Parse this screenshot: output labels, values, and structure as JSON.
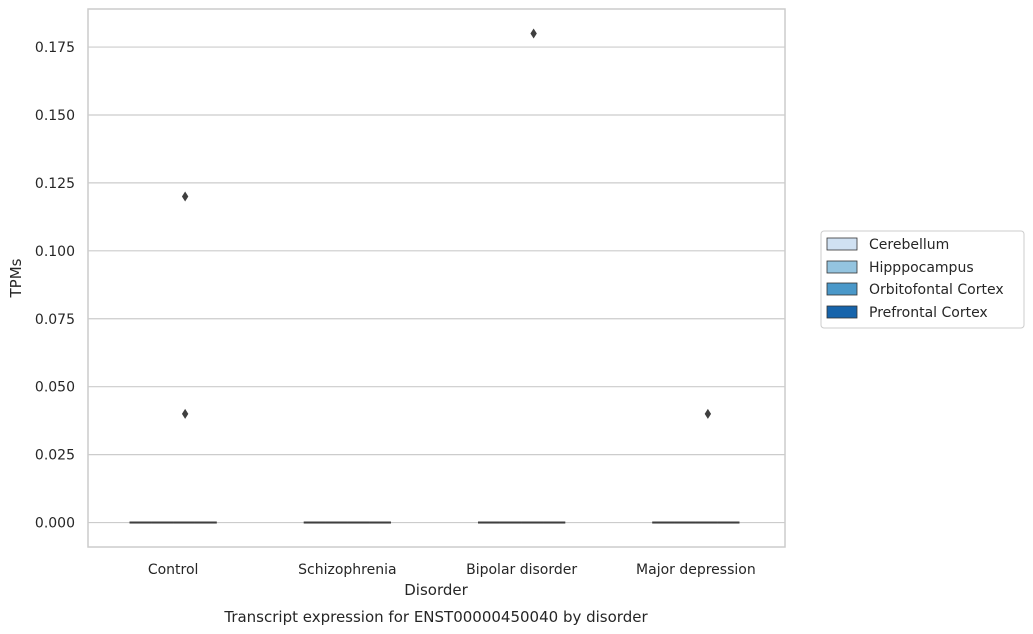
{
  "chart_data": {
    "type": "box",
    "caption": "Transcript expression for ENST00000450040 by disorder",
    "xlabel": "Disorder",
    "ylabel": "TPMs",
    "ylim": [
      -0.009,
      0.189
    ],
    "yticks": [
      "0.000",
      "0.025",
      "0.050",
      "0.075",
      "0.100",
      "0.125",
      "0.150",
      "0.175"
    ],
    "grid": "horizontal",
    "legend_position": "right",
    "categories": [
      "Control",
      "Schizophrenia",
      "Bipolar disorder",
      "Major depression"
    ],
    "series": [
      {
        "name": "Cerebellum",
        "color": "#d0e1f2"
      },
      {
        "name": "Hipppocampus",
        "color": "#94c4df"
      },
      {
        "name": "Orbitofontal Cortex",
        "color": "#4a98c9"
      },
      {
        "name": "Prefrontal Cortex",
        "color": "#1764ab"
      }
    ],
    "box_values": [
      {
        "category": "Control",
        "q1": 0,
        "median": 0,
        "q3": 0,
        "whisker_low": 0,
        "whisker_high": 0
      },
      {
        "category": "Schizophrenia",
        "q1": 0,
        "median": 0,
        "q3": 0,
        "whisker_low": 0,
        "whisker_high": 0
      },
      {
        "category": "Bipolar disorder",
        "q1": 0,
        "median": 0,
        "q3": 0,
        "whisker_low": 0,
        "whisker_high": 0
      },
      {
        "category": "Major depression",
        "q1": 0,
        "median": 0,
        "q3": 0,
        "whisker_low": 0,
        "whisker_high": 0
      }
    ],
    "outliers": [
      {
        "category": "Control",
        "value": 0.12
      },
      {
        "category": "Control",
        "value": 0.04
      },
      {
        "category": "Bipolar disorder",
        "value": 0.18
      },
      {
        "category": "Major depression",
        "value": 0.04
      }
    ]
  }
}
